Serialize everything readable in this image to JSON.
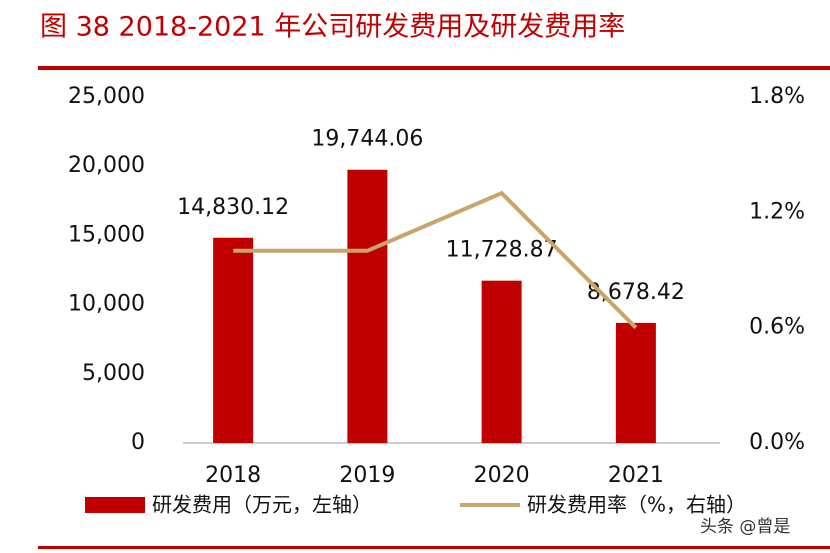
{
  "chart_data": {
    "type": "bar-line",
    "title": "图 38 2018-2021 年公司研发费用及研发费用率",
    "categories": [
      "2018",
      "2019",
      "2020",
      "2021"
    ],
    "series": [
      {
        "name": "研发费用（万元，左轴）",
        "type": "bar",
        "color": "#c00000",
        "values": [
          14830.12,
          19744.06,
          11728.87,
          8678.42
        ],
        "value_labels": [
          "14,830.12",
          "19,744.06",
          "11,728.87",
          "8,678.42"
        ]
      },
      {
        "name": "研发费用率（%，右轴）",
        "type": "line",
        "axis": "y2",
        "color": "#c9a56b",
        "values": [
          1.0,
          1.0,
          1.3,
          0.6
        ]
      }
    ],
    "ylim": [
      0,
      25000
    ],
    "yticks": [
      0,
      {
        "value": 5000,
        "label": "5,000"
      },
      {
        "value": 10000,
        "label": "10,000"
      },
      {
        "value": 15000,
        "label": "15,000"
      },
      {
        "value": 20000,
        "label": "20,000"
      },
      {
        "value": 25000,
        "label": "25,000"
      }
    ],
    "y2lim": [
      0,
      1.8
    ],
    "y2ticks": [
      {
        "value": 0,
        "label": "0.0%"
      },
      {
        "value": 0.6,
        "label": "0.6%"
      },
      {
        "value": 1.2,
        "label": "1.2%"
      },
      {
        "value": 1.8,
        "label": "1.8%"
      }
    ],
    "grid": false,
    "watermark": "头条 @曾是"
  }
}
